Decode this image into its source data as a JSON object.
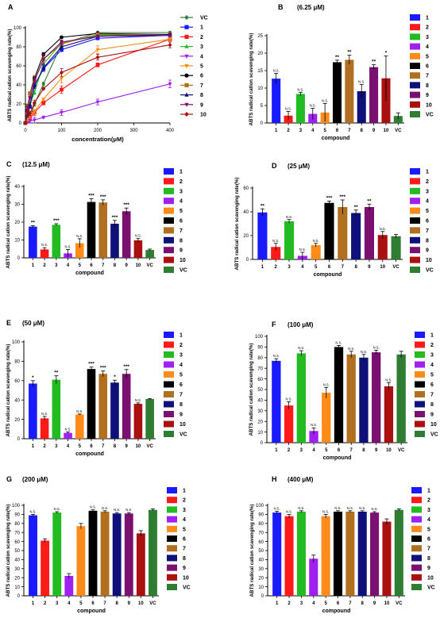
{
  "chart_data": [
    {
      "type": "line",
      "panel_label": "A",
      "title": "",
      "xlabel": "concentration(μM)",
      "ylabel": "ABTS radical cation scavenging rate(%)",
      "x": [
        0,
        6.25,
        12.5,
        25,
        50,
        100,
        200,
        400
      ],
      "xlim": [
        0,
        400
      ],
      "xticks": [
        "0",
        "100",
        "200",
        "300",
        "400"
      ],
      "ylim": [
        0,
        100
      ],
      "yticks": [
        "0",
        "20",
        "40",
        "60",
        "80",
        "100"
      ],
      "legend_position": "right",
      "series": [
        {
          "name": "VC",
          "color": "#2e7d32",
          "marker": "diamond",
          "values": [
            0,
            2,
            5,
            20,
            41,
            83,
            95,
            95
          ],
          "errors": [
            0,
            1,
            1,
            2,
            2,
            3,
            1,
            1
          ]
        },
        {
          "name": "1",
          "color": "#1a1aff",
          "marker": "square",
          "values": [
            0,
            13,
            17,
            39,
            57,
            77,
            89,
            92
          ],
          "errors": [
            0,
            2,
            1,
            3,
            3,
            2,
            1,
            2
          ]
        },
        {
          "name": "2",
          "color": "#ff1a1a",
          "marker": "square",
          "values": [
            0,
            2,
            5,
            11,
            21,
            35,
            61,
            88
          ],
          "errors": [
            0,
            1,
            1,
            3,
            2,
            4,
            2,
            2
          ]
        },
        {
          "name": "3",
          "color": "#22bb22",
          "marker": "triangle-up",
          "values": [
            0,
            9,
            19,
            32,
            62,
            84,
            92,
            93
          ],
          "errors": [
            0,
            1,
            1,
            2,
            5,
            3,
            1,
            1
          ]
        },
        {
          "name": "4",
          "color": "#a020f0",
          "marker": "triangle-down",
          "values": [
            0,
            3,
            2,
            3,
            6,
            11,
            22,
            41
          ],
          "errors": [
            0,
            2,
            2,
            3,
            1,
            3,
            3,
            4
          ]
        },
        {
          "name": "5",
          "color": "#ff8c1a",
          "marker": "triangle-down",
          "values": [
            0,
            4,
            8,
            12,
            25,
            47,
            77,
            88
          ],
          "errors": [
            0,
            2,
            3,
            2,
            1,
            5,
            4,
            2
          ]
        },
        {
          "name": "6",
          "color": "#000000",
          "marker": "circle",
          "values": [
            0,
            18,
            31,
            47,
            72,
            90,
            94,
            93
          ],
          "errors": [
            0,
            1,
            2,
            2,
            2,
            1,
            1,
            1
          ]
        },
        {
          "name": "7",
          "color": "#b07020",
          "marker": "square",
          "values": [
            0,
            18,
            31,
            44,
            67,
            83,
            93,
            93
          ],
          "errors": [
            0,
            2,
            2,
            6,
            3,
            3,
            1,
            1
          ]
        },
        {
          "name": "8",
          "color": "#10107a",
          "marker": "triangle-up",
          "values": [
            0,
            9,
            19,
            39,
            58,
            80,
            91,
            93
          ],
          "errors": [
            0,
            3,
            3,
            3,
            3,
            3,
            1,
            1
          ]
        },
        {
          "name": "9",
          "color": "#7a1070",
          "marker": "triangle-down",
          "values": [
            0,
            16,
            26,
            44,
            67,
            85,
            91,
            92
          ],
          "errors": [
            0,
            1,
            2,
            3,
            5,
            2,
            1,
            1
          ]
        },
        {
          "name": "10",
          "color": "#aa1010",
          "marker": "diamond",
          "values": [
            0,
            13,
            10,
            21,
            36,
            53,
            69,
            82
          ],
          "errors": [
            0,
            6,
            2,
            3,
            1,
            4,
            3,
            3
          ]
        }
      ]
    },
    {
      "type": "bar",
      "panel_label": "B",
      "title": "(6.25 μM)",
      "xlabel": "compound",
      "ylabel": "ABTS radical cation scavenging rate(%)",
      "categories": [
        "1",
        "2",
        "3",
        "4",
        "5",
        "6",
        "7",
        "8",
        "9",
        "10",
        "VC"
      ],
      "values": [
        12.7,
        2.1,
        8.3,
        2.6,
        3.0,
        17.4,
        18.1,
        9.1,
        16.0,
        12.8,
        2.0
      ],
      "errors": [
        1.5,
        1.2,
        0.5,
        1.6,
        2.6,
        0.6,
        1.3,
        1.9,
        0.7,
        6.4,
        0.9
      ],
      "significance": [
        "N.S.",
        "N.S.",
        "N.S.",
        "N.S.",
        "N.S.",
        "**",
        "**",
        "N.S.",
        "**",
        "*",
        ""
      ],
      "ylim": [
        0,
        25
      ],
      "yticks": [
        "0",
        "5",
        "10",
        "15",
        "20",
        "25"
      ],
      "legend_position": "right"
    },
    {
      "type": "bar",
      "panel_label": "C",
      "title": "(12.5 μM)",
      "xlabel": "compound",
      "ylabel": "ABTS radical cation scavenging rate(%)",
      "categories": [
        "1",
        "2",
        "3",
        "4",
        "5",
        "6",
        "7",
        "8",
        "9",
        "10",
        "VC"
      ],
      "values": [
        17.5,
        4.7,
        18.5,
        2.5,
        8.2,
        31.3,
        31.0,
        19.1,
        26.1,
        9.8,
        4.4
      ],
      "errors": [
        0.5,
        1.0,
        0.6,
        2.2,
        2.5,
        1.8,
        1.5,
        1.9,
        1.8,
        1.0,
        0.5
      ],
      "significance": [
        "**",
        "N.S.",
        "***",
        "N.S.",
        "N.S.",
        "***",
        "***",
        "***",
        "***",
        "N.S.",
        ""
      ],
      "ylim": [
        0,
        40
      ],
      "yticks": [
        "0",
        "10",
        "20",
        "30",
        "40"
      ],
      "legend_position": "right"
    },
    {
      "type": "bar",
      "panel_label": "D",
      "title": "(25 μM)",
      "xlabel": "compound",
      "ylabel": "ABTS radical cation scavenging rate(%)",
      "categories": [
        "1",
        "2",
        "3",
        "4",
        "5",
        "6",
        "7",
        "8",
        "9",
        "10",
        "VC"
      ],
      "values": [
        39.5,
        10.5,
        32.0,
        3.0,
        12.0,
        47.5,
        44.0,
        39.0,
        44.0,
        20.5,
        19.5
      ],
      "errors": [
        3.0,
        3.0,
        1.5,
        3.0,
        1.5,
        1.5,
        6.0,
        2.5,
        2.5,
        3.0,
        1.5
      ],
      "significance": [
        "**",
        "N.S.",
        "N.S.",
        "N.S.",
        "N.S.",
        "***",
        "***",
        "**",
        "**",
        "N.S.",
        ""
      ],
      "ylim": [
        0,
        60
      ],
      "yticks": [
        "0",
        "20",
        "40",
        "60"
      ],
      "legend_position": "right"
    },
    {
      "type": "bar",
      "panel_label": "E",
      "title": "(50 μM)",
      "xlabel": "compound",
      "ylabel": "ABTS radical cation scavenging rate(%)",
      "categories": [
        "1",
        "2",
        "3",
        "4",
        "5",
        "6",
        "7",
        "8",
        "9",
        "10",
        "VC"
      ],
      "values": [
        57,
        21,
        61,
        6,
        25,
        72,
        67,
        58,
        67,
        36,
        41
      ],
      "errors": [
        3,
        2,
        4,
        1,
        0.5,
        2,
        3,
        2.5,
        4.5,
        1,
        0.5
      ],
      "significance": [
        "*",
        "N.S.",
        "**",
        "N.S.",
        "N.S.",
        "***",
        "***",
        "*",
        "***",
        "N.S.",
        ""
      ],
      "ylim": [
        0,
        100
      ],
      "yticks": [
        "0",
        "20",
        "40",
        "60",
        "80",
        "100"
      ],
      "legend_position": "right"
    },
    {
      "type": "bar",
      "panel_label": "F",
      "title": "(100 μM)",
      "xlabel": "compound",
      "ylabel": "ABTS radical cation scavenging rate(%)",
      "categories": [
        "1",
        "2",
        "3",
        "4",
        "5",
        "6",
        "7",
        "8",
        "9",
        "10",
        "VC"
      ],
      "values": [
        77,
        35,
        84,
        11,
        47,
        90,
        83,
        80,
        85,
        53,
        83
      ],
      "errors": [
        2,
        3.5,
        2.5,
        3,
        5,
        1.5,
        3,
        3,
        2,
        3.5,
        3
      ],
      "significance": [
        "N.S.",
        "N.S.",
        "N.S.",
        "N.S.",
        "N.S.",
        "N.S.",
        "N.S.",
        "N.S.",
        "N.S.",
        "N.S.",
        ""
      ],
      "ylim": [
        0,
        100
      ],
      "yticks": [
        "0",
        "10",
        "20",
        "30",
        "40",
        "50",
        "60",
        "70",
        "80",
        "90",
        "100"
      ],
      "legend_position": "right"
    },
    {
      "type": "bar",
      "panel_label": "G",
      "title": "(200 μM)",
      "xlabel": "compound",
      "ylabel": "ABTS radical cation scavenging rate(%)",
      "categories": [
        "1",
        "2",
        "3",
        "4",
        "5",
        "6",
        "7",
        "8",
        "9",
        "10",
        "VC"
      ],
      "values": [
        89,
        61,
        92,
        22,
        77,
        94,
        93,
        91,
        91,
        69,
        95
      ],
      "errors": [
        1,
        2,
        1,
        2.5,
        3,
        1,
        1,
        1,
        1,
        3,
        1
      ],
      "significance": [
        "N.S.",
        "",
        "N.S.",
        "",
        "",
        "N.S.",
        "N.S.",
        "N.S.",
        "N.S.",
        "",
        ""
      ],
      "ylim": [
        0,
        100
      ],
      "yticks": [
        "0",
        "10",
        "20",
        "30",
        "40",
        "50",
        "60",
        "70",
        "80",
        "90",
        "100"
      ],
      "legend_position": "right"
    },
    {
      "type": "bar",
      "panel_label": "H",
      "title": "(400 μM)",
      "xlabel": "compound",
      "ylabel": "ABTS radical cation scavenging rate(%)",
      "categories": [
        "1",
        "2",
        "3",
        "4",
        "5",
        "6",
        "7",
        "8",
        "9",
        "10",
        "VC"
      ],
      "values": [
        92,
        88,
        93,
        41,
        88,
        93,
        93,
        93,
        92,
        82,
        95
      ],
      "errors": [
        1.5,
        2,
        1,
        4,
        2,
        1,
        1,
        1,
        1,
        3,
        1
      ],
      "significance": [
        "N.S.",
        "N.S.",
        "N.S.",
        "",
        "N.S.",
        "N.S.",
        "N.S.",
        "N.S.",
        "N.S.",
        "",
        ""
      ],
      "ylim": [
        0,
        100
      ],
      "yticks": [
        "0",
        "10",
        "20",
        "30",
        "40",
        "50",
        "60",
        "70",
        "80",
        "90",
        "100"
      ],
      "legend_position": "right"
    }
  ],
  "colors": {
    "1": "#1a1aff",
    "2": "#ff1a1a",
    "3": "#22bb22",
    "4": "#a020f0",
    "5": "#ff8c1a",
    "6": "#000000",
    "7": "#b07020",
    "8": "#10107a",
    "9": "#7a1070",
    "10": "#aa1010",
    "VC": "#2e7d32"
  }
}
